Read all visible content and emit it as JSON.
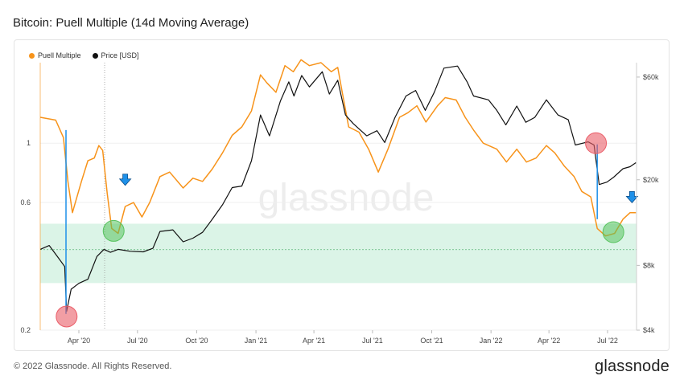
{
  "page": {
    "title": "Bitcoin: Puell Multiple (14d Moving Average)",
    "copyright": "© 2022 Glassnode. All Rights Reserved.",
    "brand": "glassnode",
    "watermark": "glassnode"
  },
  "colors": {
    "puell": "#f7931a",
    "price": "#111111",
    "green_zone": "#d7f3e4",
    "green_circle": "#58c35f",
    "red_circle": "#ea5d68",
    "arrow": "#1e90e8",
    "marker_line": "#1e90e8"
  },
  "chart_data": {
    "type": "line",
    "title": "Bitcoin: Puell Multiple (14d Moving Average)",
    "legend": {
      "position": "top-left",
      "entries": [
        "Puell Multiple",
        "Price [USD]"
      ]
    },
    "x_axis": {
      "range": [
        "2020-02-01",
        "2022-08-15"
      ],
      "ticks": [
        "Apr '20",
        "Jul '20",
        "Oct '20",
        "Jan '21",
        "Apr '21",
        "Jul '21",
        "Oct '21",
        "Jan '22",
        "Apr '22",
        "Jul '22"
      ]
    },
    "y_left": {
      "scale": "log",
      "range": [
        0.2,
        2.0
      ],
      "ticks": [
        "1",
        "0.6",
        "0.2"
      ],
      "tick_values": [
        1,
        0.6,
        0.2
      ]
    },
    "y_right": {
      "scale": "log",
      "range": [
        4000,
        70000
      ],
      "ticks": [
        "$60k",
        "$20k",
        "$8k",
        "$4k"
      ],
      "tick_values": [
        60000,
        20000,
        8000,
        4000
      ]
    },
    "green_band": [
      0.3,
      0.5
    ],
    "dashed_line": 0.4,
    "series": [
      {
        "name": "Puell Multiple",
        "axis": "left",
        "points": [
          [
            "2020-02-01",
            1.25
          ],
          [
            "2020-02-25",
            1.22
          ],
          [
            "2020-03-08",
            1.05
          ],
          [
            "2020-03-15",
            0.72
          ],
          [
            "2020-03-22",
            0.55
          ],
          [
            "2020-04-05",
            0.72
          ],
          [
            "2020-04-15",
            0.86
          ],
          [
            "2020-04-25",
            0.88
          ],
          [
            "2020-05-02",
            0.98
          ],
          [
            "2020-05-08",
            0.94
          ],
          [
            "2020-05-15",
            0.65
          ],
          [
            "2020-05-22",
            0.48
          ],
          [
            "2020-06-01",
            0.46
          ],
          [
            "2020-06-12",
            0.58
          ],
          [
            "2020-06-25",
            0.6
          ],
          [
            "2020-07-08",
            0.53
          ],
          [
            "2020-07-20",
            0.6
          ],
          [
            "2020-08-05",
            0.75
          ],
          [
            "2020-08-20",
            0.78
          ],
          [
            "2020-09-10",
            0.68
          ],
          [
            "2020-09-25",
            0.74
          ],
          [
            "2020-10-10",
            0.72
          ],
          [
            "2020-10-25",
            0.8
          ],
          [
            "2020-11-10",
            0.92
          ],
          [
            "2020-11-25",
            1.07
          ],
          [
            "2020-12-10",
            1.15
          ],
          [
            "2020-12-25",
            1.32
          ],
          [
            "2021-01-08",
            1.8
          ],
          [
            "2021-01-18",
            1.68
          ],
          [
            "2021-02-01",
            1.55
          ],
          [
            "2021-02-15",
            1.95
          ],
          [
            "2021-02-28",
            1.85
          ],
          [
            "2021-03-12",
            2.05
          ],
          [
            "2021-03-25",
            1.95
          ],
          [
            "2021-04-12",
            2.0
          ],
          [
            "2021-04-28",
            1.85
          ],
          [
            "2021-05-08",
            1.92
          ],
          [
            "2021-05-15",
            1.55
          ],
          [
            "2021-05-25",
            1.15
          ],
          [
            "2021-06-10",
            1.1
          ],
          [
            "2021-06-25",
            0.95
          ],
          [
            "2021-07-10",
            0.78
          ],
          [
            "2021-07-25",
            0.95
          ],
          [
            "2021-08-12",
            1.25
          ],
          [
            "2021-08-25",
            1.3
          ],
          [
            "2021-09-08",
            1.38
          ],
          [
            "2021-09-22",
            1.2
          ],
          [
            "2021-10-10",
            1.38
          ],
          [
            "2021-10-22",
            1.48
          ],
          [
            "2021-11-08",
            1.45
          ],
          [
            "2021-11-22",
            1.25
          ],
          [
            "2021-12-05",
            1.12
          ],
          [
            "2021-12-20",
            1.0
          ],
          [
            "2022-01-10",
            0.95
          ],
          [
            "2022-01-25",
            0.85
          ],
          [
            "2022-02-10",
            0.95
          ],
          [
            "2022-02-25",
            0.85
          ],
          [
            "2022-03-12",
            0.88
          ],
          [
            "2022-03-28",
            0.98
          ],
          [
            "2022-04-10",
            0.92
          ],
          [
            "2022-04-25",
            0.82
          ],
          [
            "2022-05-10",
            0.75
          ],
          [
            "2022-05-22",
            0.66
          ],
          [
            "2022-06-05",
            0.63
          ],
          [
            "2022-06-15",
            0.48
          ],
          [
            "2022-06-28",
            0.45
          ],
          [
            "2022-07-12",
            0.46
          ],
          [
            "2022-07-25",
            0.52
          ],
          [
            "2022-08-05",
            0.55
          ],
          [
            "2022-08-14",
            0.55
          ]
        ]
      },
      {
        "name": "Price [USD]",
        "axis": "right",
        "points": [
          [
            "2020-02-01",
            9500
          ],
          [
            "2020-02-15",
            9900
          ],
          [
            "2020-03-01",
            8600
          ],
          [
            "2020-03-10",
            7900
          ],
          [
            "2020-03-13",
            4900
          ],
          [
            "2020-03-20",
            6200
          ],
          [
            "2020-04-01",
            6600
          ],
          [
            "2020-04-15",
            6900
          ],
          [
            "2020-04-29",
            8800
          ],
          [
            "2020-05-10",
            9500
          ],
          [
            "2020-05-20",
            9200
          ],
          [
            "2020-06-01",
            9500
          ],
          [
            "2020-06-20",
            9300
          ],
          [
            "2020-07-10",
            9250
          ],
          [
            "2020-07-25",
            9600
          ],
          [
            "2020-08-05",
            11500
          ],
          [
            "2020-08-25",
            11700
          ],
          [
            "2020-09-10",
            10300
          ],
          [
            "2020-09-25",
            10700
          ],
          [
            "2020-10-10",
            11400
          ],
          [
            "2020-10-25",
            13100
          ],
          [
            "2020-11-10",
            15300
          ],
          [
            "2020-11-25",
            18400
          ],
          [
            "2020-12-10",
            18700
          ],
          [
            "2020-12-25",
            24500
          ],
          [
            "2021-01-08",
            40000
          ],
          [
            "2021-01-22",
            32000
          ],
          [
            "2021-02-08",
            46500
          ],
          [
            "2021-02-21",
            57000
          ],
          [
            "2021-03-01",
            49000
          ],
          [
            "2021-03-13",
            61000
          ],
          [
            "2021-03-25",
            54000
          ],
          [
            "2021-04-14",
            63500
          ],
          [
            "2021-04-25",
            50000
          ],
          [
            "2021-05-08",
            58000
          ],
          [
            "2021-05-20",
            40000
          ],
          [
            "2021-06-01",
            36500
          ],
          [
            "2021-06-22",
            32000
          ],
          [
            "2021-07-08",
            33800
          ],
          [
            "2021-07-20",
            29800
          ],
          [
            "2021-08-05",
            39000
          ],
          [
            "2021-08-22",
            49000
          ],
          [
            "2021-09-06",
            52000
          ],
          [
            "2021-09-21",
            42000
          ],
          [
            "2021-10-05",
            51000
          ],
          [
            "2021-10-20",
            66000
          ],
          [
            "2021-11-10",
            67500
          ],
          [
            "2021-11-25",
            57000
          ],
          [
            "2021-12-05",
            49000
          ],
          [
            "2021-12-28",
            47000
          ],
          [
            "2022-01-10",
            42000
          ],
          [
            "2022-01-24",
            36000
          ],
          [
            "2022-02-10",
            44000
          ],
          [
            "2022-02-24",
            37000
          ],
          [
            "2022-03-10",
            39000
          ],
          [
            "2022-03-28",
            47000
          ],
          [
            "2022-04-15",
            40000
          ],
          [
            "2022-05-01",
            38000
          ],
          [
            "2022-05-12",
            29000
          ],
          [
            "2022-06-01",
            30000
          ],
          [
            "2022-06-10",
            29000
          ],
          [
            "2022-06-18",
            19000
          ],
          [
            "2022-06-30",
            19500
          ],
          [
            "2022-07-10",
            20500
          ],
          [
            "2022-07-25",
            22500
          ],
          [
            "2022-08-05",
            23000
          ],
          [
            "2022-08-14",
            24000
          ]
        ]
      }
    ],
    "annotations": {
      "vertical_lines": [
        {
          "date": "2020-03-12",
          "y_from": 1.12,
          "y_to": 0.23
        },
        {
          "date": "2022-06-15",
          "y_from": 0.99,
          "y_to": 0.52
        }
      ],
      "dotted_line": {
        "date": "2020-05-11"
      },
      "red_circles": [
        {
          "date": "2020-03-13",
          "y": 0.225
        },
        {
          "date": "2022-06-13",
          "y": 1.0
        }
      ],
      "green_circles": [
        {
          "date": "2020-05-25",
          "y": 0.47
        },
        {
          "date": "2022-07-10",
          "y": 0.465
        }
      ],
      "arrows": [
        {
          "date": "2020-06-12",
          "y": 0.72
        },
        {
          "date": "2022-08-08",
          "y": 0.62
        }
      ]
    }
  }
}
